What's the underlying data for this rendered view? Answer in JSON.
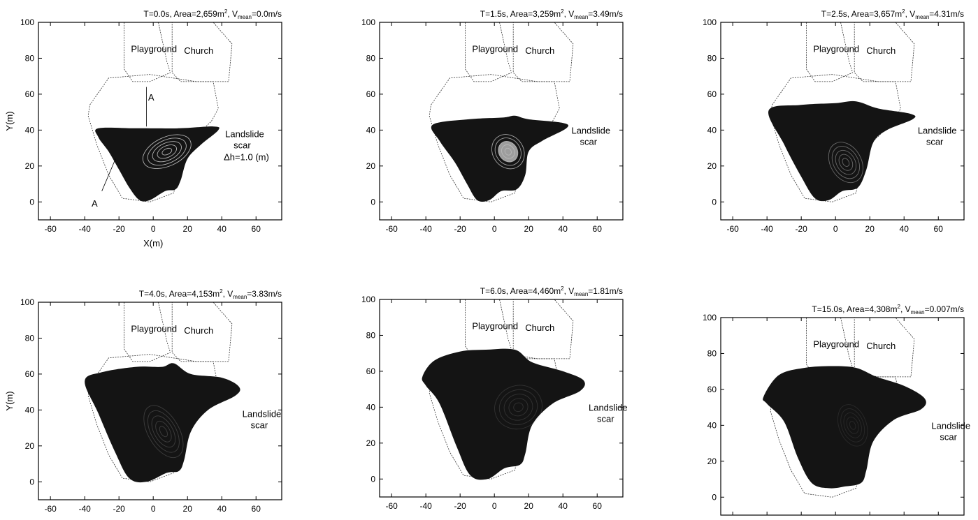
{
  "panels": [
    {
      "t": "T=0.0s, Area=2,659m",
      "area_sup": "2",
      "v_prefix": ", V",
      "v_sub": "mean",
      "v_value": "=0.0m/s",
      "show_ylabel": true,
      "show_xlabel": true,
      "scar_line1": "Landslide",
      "scar_line2": "scar",
      "extra_label": "Δh=1.0 (m)",
      "section_top": "A",
      "section_bottom": "A"
    },
    {
      "t": "T=1.5s, Area=3,259m",
      "area_sup": "2",
      "v_prefix": ", V",
      "v_sub": "mean",
      "v_value": "=3.49m/s",
      "show_ylabel": false,
      "show_xlabel": false,
      "scar_line1": "Landslide",
      "scar_line2": "scar"
    },
    {
      "t": "T=2.5s, Area=3,657m",
      "area_sup": "2",
      "v_prefix": ", V",
      "v_sub": "mean",
      "v_value": "=4.31m/s",
      "show_ylabel": false,
      "show_xlabel": false,
      "scar_line1": "Landslide",
      "scar_line2": "scar"
    },
    {
      "t": "T=4.0s, Area=4,153m",
      "area_sup": "2",
      "v_prefix": ", V",
      "v_sub": "mean",
      "v_value": "=3.83m/s",
      "show_ylabel": true,
      "show_xlabel": false,
      "scar_line1": "Landslide",
      "scar_line2": "scar"
    },
    {
      "t": "T=6.0s, Area=4,460m",
      "area_sup": "2",
      "v_prefix": ", V",
      "v_sub": "mean",
      "v_value": "=1.81m/s",
      "show_ylabel": false,
      "show_xlabel": false,
      "scar_line1": "Landslide",
      "scar_line2": "scar"
    },
    {
      "t": "T=15.0s, Area=4,308m",
      "area_sup": "2",
      "v_prefix": ", V",
      "v_sub": "mean",
      "v_value": "=0.007m/s",
      "show_ylabel": false,
      "show_xlabel": false,
      "scar_line1": "Landslide",
      "scar_line2": "scar"
    }
  ],
  "labels": {
    "playground": "Playground",
    "church": "Church",
    "ylabel": "Y(m)",
    "xlabel": "X(m)"
  },
  "axes": {
    "x_ticks": [
      "-60",
      "-40",
      "-20",
      "0",
      "20",
      "40",
      "60"
    ],
    "y_ticks": [
      "0",
      "20",
      "40",
      "60",
      "80",
      "100"
    ],
    "xlim": [
      -67,
      75
    ],
    "ylim": [
      -10,
      100
    ]
  },
  "colors": {
    "debris": "#141414",
    "contour": "#bbbbbb",
    "outline": "#333333"
  }
}
